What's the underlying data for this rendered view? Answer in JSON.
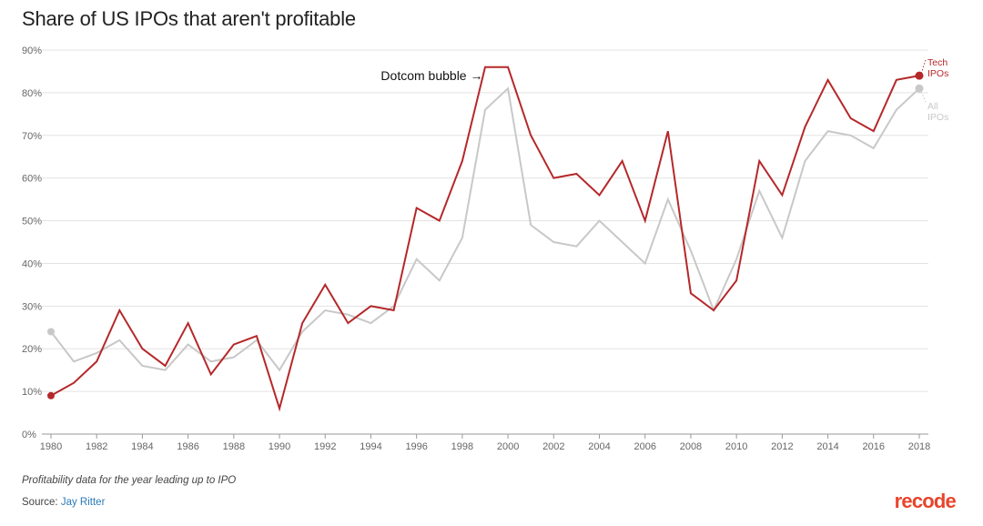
{
  "chart_data": {
    "type": "line",
    "title": "Share of US IPOs that aren't profitable",
    "xlabel": "",
    "ylabel": "",
    "x": [
      1980,
      1981,
      1982,
      1983,
      1984,
      1985,
      1986,
      1987,
      1988,
      1989,
      1990,
      1991,
      1992,
      1993,
      1994,
      1995,
      1996,
      1997,
      1998,
      1999,
      2000,
      2001,
      2002,
      2003,
      2004,
      2005,
      2006,
      2007,
      2008,
      2009,
      2010,
      2011,
      2012,
      2013,
      2014,
      2015,
      2016,
      2017,
      2018
    ],
    "xlim": [
      1980,
      2018
    ],
    "ylim": [
      0,
      90
    ],
    "x_ticks": [
      "1980",
      "1982",
      "1984",
      "1986",
      "1988",
      "1990",
      "1992",
      "1994",
      "1996",
      "1998",
      "2000",
      "2002",
      "2004",
      "2006",
      "2008",
      "2010",
      "2012",
      "2014",
      "2016",
      "2018"
    ],
    "y_ticks": [
      "0%",
      "10%",
      "20%",
      "30%",
      "40%",
      "50%",
      "60%",
      "70%",
      "80%",
      "90%"
    ],
    "series": [
      {
        "name": "All IPOs",
        "label_lines": [
          "All",
          "IPOs"
        ],
        "color": "#c8c8c8",
        "values": [
          24,
          17,
          19,
          22,
          16,
          15,
          21,
          17,
          18,
          22,
          15,
          24,
          29,
          28,
          26,
          30,
          41,
          36,
          46,
          76,
          81,
          49,
          45,
          44,
          50,
          45,
          40,
          55,
          43,
          29,
          41,
          57,
          46,
          64,
          71,
          70,
          67,
          76,
          81
        ]
      },
      {
        "name": "Tech IPOs",
        "label_lines": [
          "Tech",
          "IPOs"
        ],
        "color": "#b5282a",
        "values": [
          9,
          12,
          17,
          29,
          20,
          16,
          26,
          14,
          21,
          23,
          6,
          26,
          35,
          26,
          30,
          29,
          53,
          50,
          64,
          86,
          86,
          70,
          60,
          61,
          56,
          64,
          50,
          71,
          33,
          29,
          36,
          64,
          56,
          72,
          83,
          74,
          71,
          83,
          84
        ]
      }
    ],
    "annotations": [
      {
        "text": "Dotcom bubble →",
        "x": 1998.9,
        "y": 84
      }
    ],
    "grid": true
  },
  "footnote": "Profitability data for the year leading up to IPO",
  "source": {
    "prefix": "Source: ",
    "name": "Jay Ritter"
  },
  "brand": "recode"
}
